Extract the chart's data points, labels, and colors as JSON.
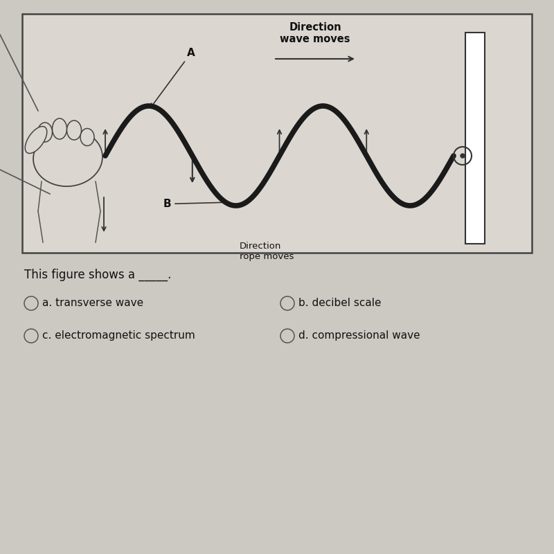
{
  "background_color": "#ccc8c2",
  "diagram_bg": "#dbd7d0",
  "box_border_color": "#444444",
  "question_text": "This figure shows a _____.",
  "options": [
    {
      "label": "a. transverse wave"
    },
    {
      "label": "b. decibel scale"
    },
    {
      "label": "c. electromagnetic spectrum"
    },
    {
      "label": "d. compressional wave"
    }
  ],
  "wave_color": "#1a1a1a",
  "wave_linewidth": 5.5,
  "arrow_color": "#333333",
  "text_color": "#111111",
  "font_size_question": 11,
  "font_size_options": 10,
  "font_size_diagram": 9,
  "font_size_label": 10
}
